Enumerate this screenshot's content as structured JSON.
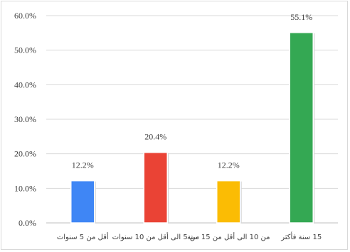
{
  "chart_data": {
    "type": "bar",
    "title": "",
    "xlabel": "",
    "ylabel": "",
    "categories": [
      "أقل من 5 سنوات",
      "من 5 الى أقل من 10 سنوات",
      "من 10 الى أقل من 15 سنة",
      "15 سنة فأكثر"
    ],
    "values": [
      12.2,
      20.4,
      12.2,
      55.1
    ],
    "data_labels": [
      "12.2%",
      "20.4%",
      "12.2%",
      "55.1%"
    ],
    "colors": [
      "#3f86f5",
      "#ea4335",
      "#fbbc04",
      "#34a853"
    ],
    "ylim": [
      0,
      60
    ],
    "yticks": [
      "0.0%",
      "10.0%",
      "20.0%",
      "30.0%",
      "40.0%",
      "50.0%",
      "60.0%"
    ],
    "grid": true,
    "legend": "none"
  }
}
